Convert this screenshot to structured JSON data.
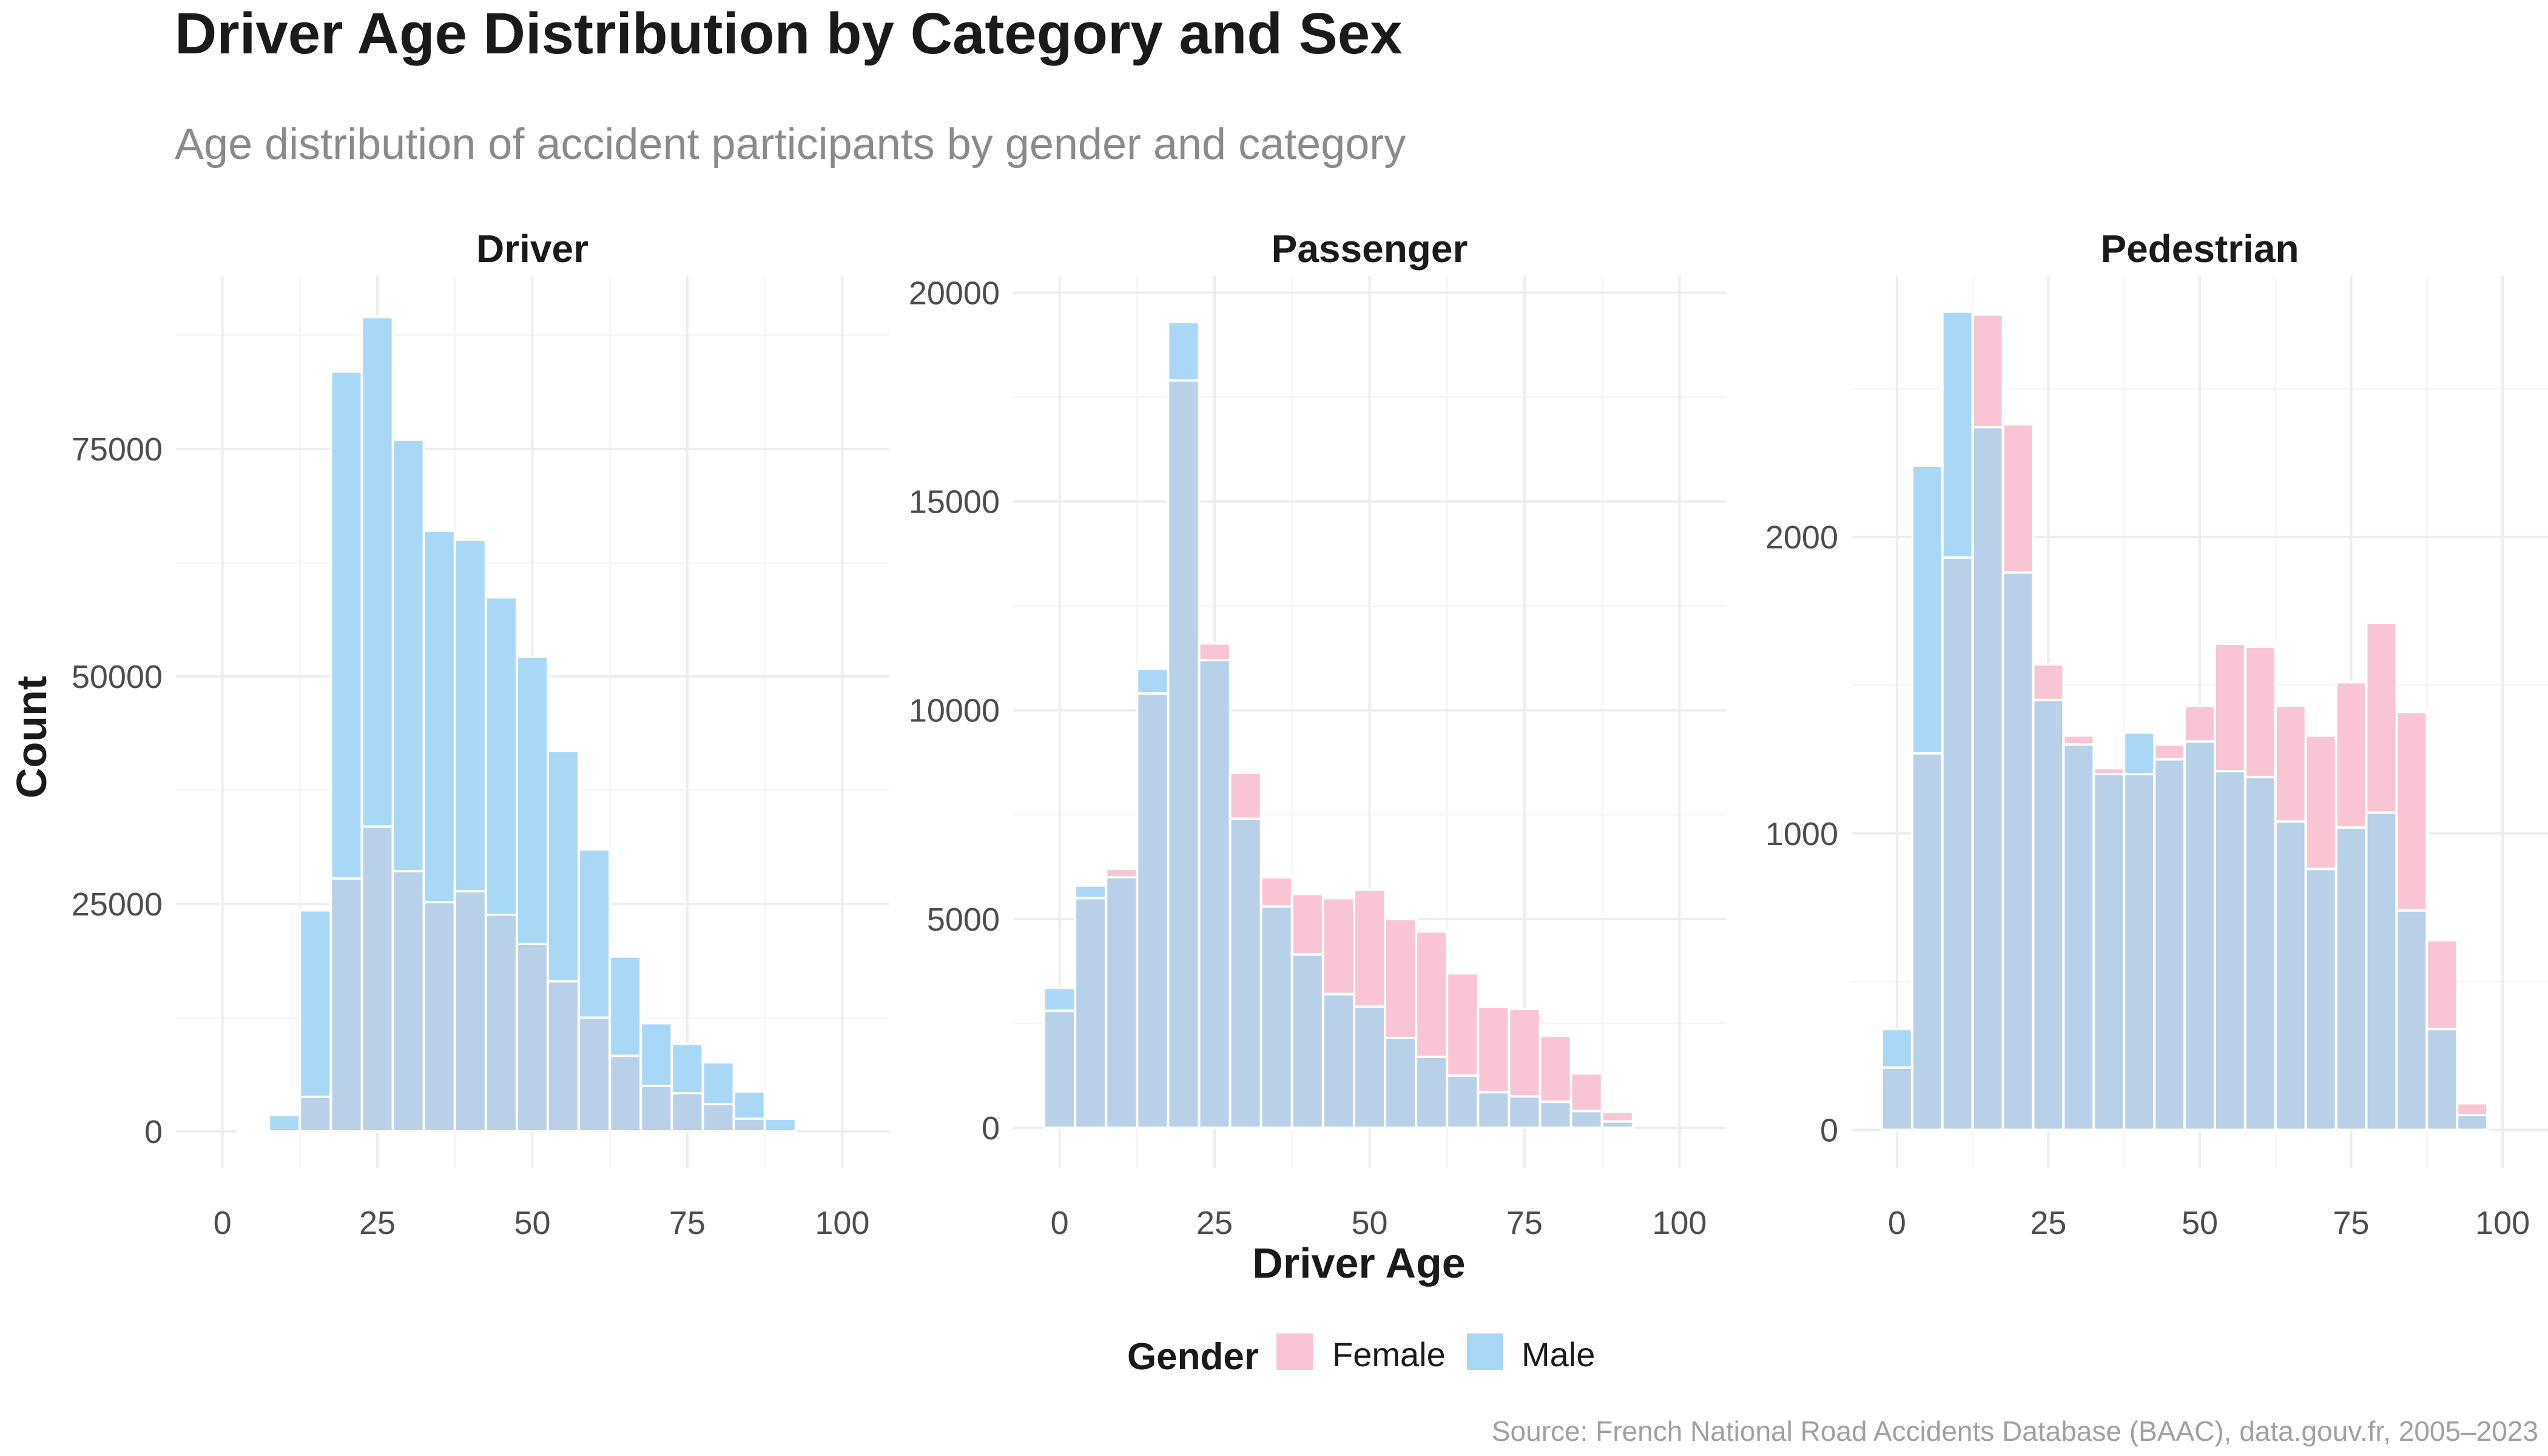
{
  "title": "Driver Age Distribution by Category and Sex",
  "subtitle": "Age distribution of accident participants by gender and category",
  "caption": "Source: French National Road Accidents Database (BAAC), data.gouv.fr, 2005–2023",
  "colors": {
    "Female": "#f9c4d4",
    "Male": "#a8d8f5",
    "overlap": "#b8d0e8"
  },
  "chart_data": [
    {
      "type": "bar",
      "facet": "Driver",
      "xlabel": "Driver Age",
      "ylabel": "Count",
      "xlim": [
        -7.5,
        107.5
      ],
      "x_ticks": [
        0,
        25,
        50,
        75,
        100
      ],
      "ylim": [
        -4000,
        94000
      ],
      "y_ticks": [
        0,
        25000,
        50000,
        75000
      ],
      "y_tick_labels": [
        "0",
        "25000",
        "50000",
        "75000"
      ],
      "grid": true,
      "bin_width": 5,
      "bin_centers": [
        5,
        10,
        15,
        20,
        25,
        30,
        35,
        40,
        45,
        50,
        55,
        60,
        65,
        70,
        75,
        80,
        85,
        90
      ],
      "series": [
        {
          "name": "Female",
          "values": [
            0,
            0,
            3800,
            27800,
            33500,
            28600,
            25200,
            26400,
            23800,
            20600,
            16500,
            12500,
            8300,
            5000,
            4200,
            3000,
            1400,
            0
          ]
        },
        {
          "name": "Male",
          "values": [
            200,
            1800,
            24300,
            83500,
            89500,
            76000,
            66000,
            65000,
            58700,
            52200,
            41800,
            31000,
            19200,
            11900,
            9600,
            7600,
            4400,
            1400
          ]
        }
      ]
    },
    {
      "type": "bar",
      "facet": "Passenger",
      "xlabel": "Driver Age",
      "ylabel": "Count",
      "xlim": [
        -7.5,
        107.5
      ],
      "x_ticks": [
        0,
        25,
        50,
        75,
        100
      ],
      "ylim": [
        -960,
        20400
      ],
      "y_ticks": [
        0,
        5000,
        10000,
        15000,
        20000
      ],
      "y_tick_labels": [
        "0",
        "5000",
        "10000",
        "15000",
        "20000"
      ],
      "grid": true,
      "bin_width": 5,
      "bin_centers": [
        0,
        5,
        10,
        15,
        20,
        25,
        30,
        35,
        40,
        45,
        50,
        55,
        60,
        65,
        70,
        75,
        80,
        85,
        90
      ],
      "series": [
        {
          "name": "Female",
          "values": [
            2800,
            5500,
            6200,
            10400,
            17900,
            11600,
            8500,
            6000,
            5600,
            5500,
            5700,
            5000,
            4700,
            3700,
            2900,
            2850,
            2200,
            1300,
            380
          ]
        },
        {
          "name": "Male",
          "values": [
            3350,
            5800,
            6000,
            11000,
            19300,
            11200,
            7400,
            5300,
            4150,
            3200,
            2900,
            2150,
            1700,
            1250,
            850,
            750,
            620,
            400,
            150
          ]
        }
      ]
    },
    {
      "type": "bar",
      "facet": "Pedestrian",
      "xlabel": "Driver Age",
      "ylabel": "Count",
      "xlim": [
        -7.5,
        107.5
      ],
      "x_ticks": [
        0,
        25,
        50,
        75,
        100
      ],
      "ylim": [
        -128,
        2880
      ],
      "y_ticks": [
        0,
        1000,
        2000
      ],
      "y_tick_labels": [
        "0",
        "1000",
        "2000"
      ],
      "grid": true,
      "bin_width": 5,
      "bin_centers": [
        0,
        5,
        10,
        15,
        20,
        25,
        30,
        35,
        40,
        45,
        50,
        55,
        60,
        65,
        70,
        75,
        80,
        85,
        90,
        95
      ],
      "series": [
        {
          "name": "Female",
          "values": [
            210,
            1270,
            1930,
            2750,
            2380,
            1570,
            1330,
            1220,
            1200,
            1300,
            1430,
            1640,
            1630,
            1430,
            1330,
            1510,
            1710,
            1410,
            640,
            90
          ]
        },
        {
          "name": "Male",
          "values": [
            340,
            2240,
            2760,
            2370,
            1880,
            1450,
            1300,
            1200,
            1340,
            1250,
            1310,
            1210,
            1190,
            1040,
            880,
            1020,
            1070,
            740,
            340,
            50
          ]
        }
      ]
    }
  ],
  "legend": {
    "title": "Gender",
    "position": "bottom",
    "entries": [
      "Female",
      "Male"
    ]
  }
}
